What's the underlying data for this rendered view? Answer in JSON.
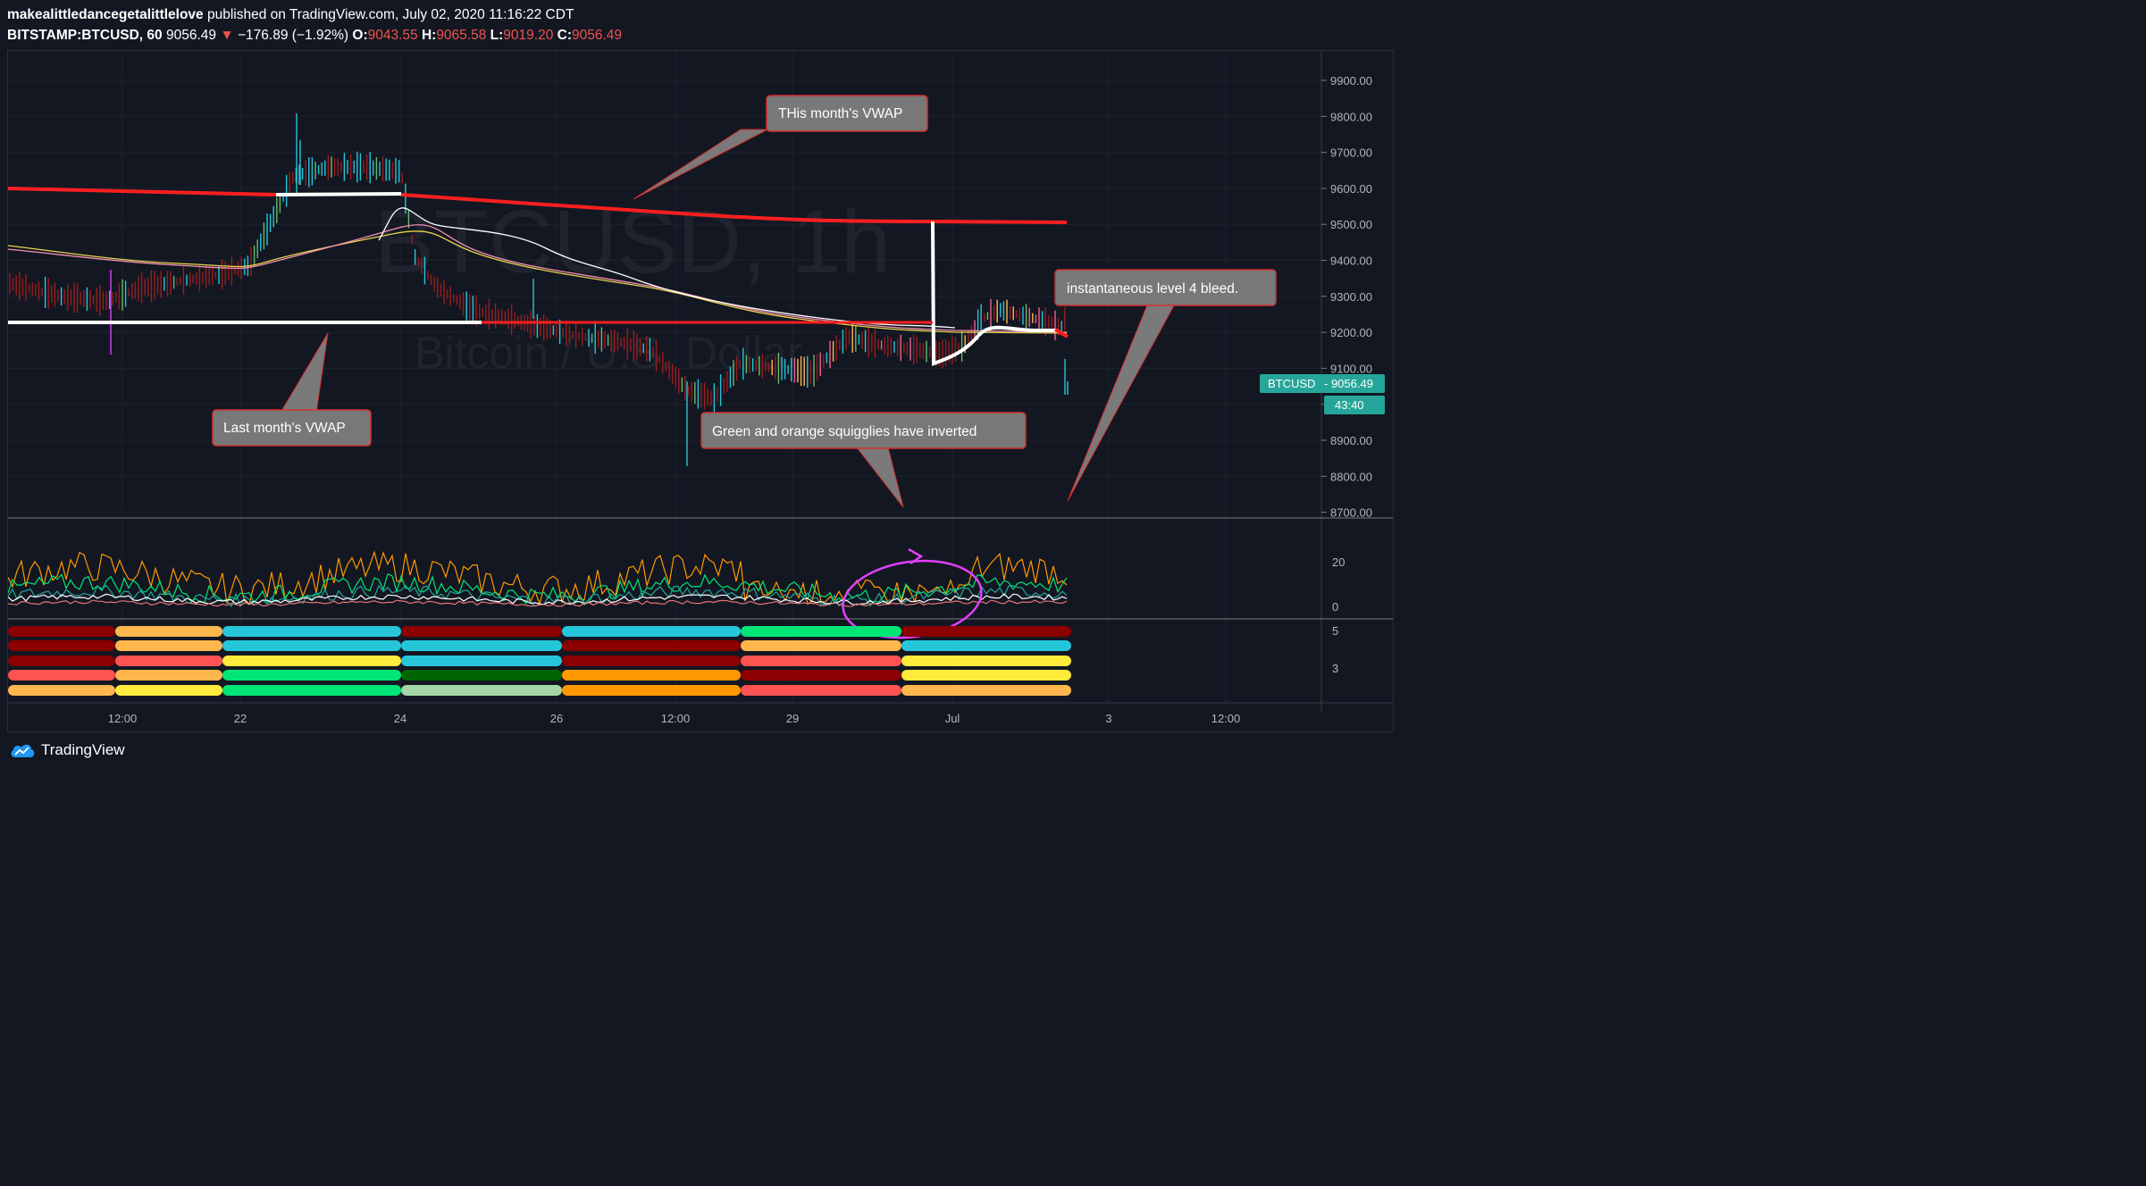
{
  "header": {
    "author": "makealittledancegetalittlelove",
    "published": "published on TradingView.com, July 02, 2020 11:16:22 CDT",
    "symbol": "BITSTAMP:BTCUSD, 60",
    "last": "9056.49",
    "arrow": "▼",
    "change": "−176.89 (−1.92%)",
    "o_label": "O:",
    "o_value": "9043.55",
    "h_label": "H:",
    "h_value": "9065.58",
    "l_label": "L:",
    "l_value": "9019.20",
    "c_label": "C:",
    "c_value": "9056.49"
  },
  "watermark": {
    "line1": "BTCUSD, 1h",
    "line2": "Bitcoin / U.S. Dollar"
  },
  "annotations": {
    "this_month": "THis month's VWAP",
    "last_month": "Last month's VWAP",
    "squiggles": "Green and orange squigglies have inverted",
    "bleed": "instantaneous level 4 bleed."
  },
  "price_axis": [
    "9900.00",
    "9800.00",
    "9700.00",
    "9600.00",
    "9500.00",
    "9400.00",
    "9300.00",
    "9200.00",
    "9100.00",
    "9000.00",
    "8900.00",
    "8800.00",
    "8700.00"
  ],
  "osc_axis": [
    "20",
    "0"
  ],
  "bands_axis": [
    "5",
    "3"
  ],
  "price_badge": {
    "symbol": "BTCUSD",
    "value": "9056.49",
    "countdown": "43:40"
  },
  "time_axis": [
    "12:00",
    "22",
    "24",
    "26",
    "12:00",
    "29",
    "Jul",
    "3",
    "12:00"
  ],
  "footer": {
    "brand": "TradingView"
  },
  "colors": {
    "background": "#131722",
    "up": "#26c6da",
    "down": "#b71c1c",
    "vwap": "#ff1f1f",
    "badge": "#26a69a"
  }
}
